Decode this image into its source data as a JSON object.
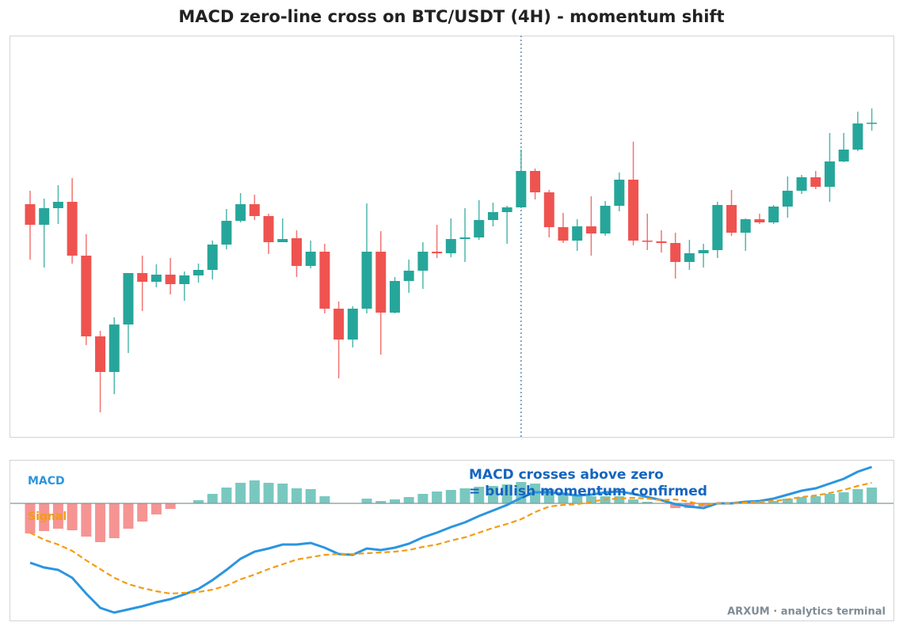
{
  "chart_data": [
    {
      "type": "candlestick",
      "title": "MACD zero-line cross on BTC/USDT (4H) - momentum shift",
      "up_color": "#26a69a",
      "down_color": "#ef5350",
      "ylim": [
        8,
        515
      ],
      "marker_index": 35,
      "open": [
        302,
        276,
        297,
        305,
        237,
        135,
        90,
        150,
        215,
        204,
        213,
        201,
        212,
        219,
        251,
        281,
        302,
        287,
        254,
        259,
        224,
        242,
        170,
        131,
        170,
        242,
        165,
        205,
        218,
        242,
        240,
        258,
        260,
        282,
        292,
        298,
        344,
        317,
        273,
        256,
        274,
        265,
        300,
        333,
        256,
        255,
        253,
        229,
        240,
        244,
        301,
        266,
        283,
        279,
        299,
        319,
        336,
        324,
        356,
        371,
        404
      ],
      "high": [
        319,
        309,
        326,
        335,
        264,
        142,
        159,
        215,
        237,
        226,
        234,
        217,
        227,
        256,
        296,
        316,
        314,
        290,
        284,
        269,
        256,
        252,
        179,
        173,
        303,
        268,
        210,
        232,
        254,
        276,
        284,
        297,
        307,
        304,
        300,
        371,
        347,
        320,
        291,
        283,
        312,
        306,
        342,
        381,
        290,
        269,
        266,
        257,
        252,
        305,
        320,
        284,
        290,
        301,
        337,
        339,
        344,
        392,
        392,
        419,
        423
      ],
      "low": [
        232,
        222,
        277,
        227,
        124,
        39,
        62,
        114,
        167,
        197,
        188,
        180,
        203,
        207,
        245,
        279,
        282,
        239,
        254,
        210,
        221,
        164,
        82,
        121,
        164,
        112,
        164,
        190,
        195,
        234,
        235,
        229,
        257,
        274,
        252,
        297,
        308,
        260,
        253,
        243,
        237,
        262,
        293,
        250,
        244,
        241,
        208,
        219,
        222,
        234,
        262,
        243,
        277,
        277,
        285,
        315,
        321,
        305,
        355,
        369,
        395
      ],
      "close": [
        276,
        297,
        305,
        237,
        135,
        90,
        150,
        215,
        204,
        213,
        201,
        212,
        219,
        251,
        281,
        302,
        287,
        254,
        258,
        224,
        242,
        170,
        131,
        170,
        242,
        165,
        205,
        218,
        242,
        240,
        258,
        260,
        282,
        292,
        298,
        344,
        317,
        273,
        256,
        274,
        265,
        300,
        333,
        256,
        255,
        253,
        229,
        240,
        244,
        301,
        266,
        283,
        279,
        299,
        319,
        336,
        324,
        356,
        371,
        404,
        405
      ]
    },
    {
      "type": "macd",
      "ylim": [
        -14.8,
        5.5
      ],
      "annotation": [
        "MACD crosses above zero",
        "= bullish momentum confirmed"
      ],
      "annotation_index": 35,
      "footer": "ARXUM · analytics terminal",
      "series": [
        {
          "kind": "histogram",
          "color": "#26a69a",
          "negative_color": "#ef5350",
          "values": [
            -3.8,
            -3.5,
            -3.2,
            -3.4,
            -4.2,
            -4.9,
            -4.4,
            -3.2,
            -2.3,
            -1.4,
            -0.7,
            0,
            0.4,
            1.2,
            2.0,
            2.6,
            2.9,
            2.6,
            2.5,
            1.9,
            1.8,
            0.9,
            0,
            0,
            0.6,
            0.3,
            0.5,
            0.8,
            1.2,
            1.5,
            1.7,
            1.9,
            2.1,
            2.2,
            2.4,
            2.7,
            2.5,
            1.8,
            1.4,
            1.1,
            0.9,
            0.9,
            0.9,
            0.5,
            0.2,
            0,
            -0.6,
            -0.6,
            -0.4,
            0,
            0,
            0.1,
            0.1,
            0.3,
            0.6,
            0.8,
            0.9,
            1.2,
            1.4,
            1.8,
            2.0
          ]
        },
        {
          "kind": "line",
          "name": "MACD",
          "color": "#2b95e0",
          "values": [
            -7.5,
            -8.1,
            -8.4,
            -9.4,
            -11.4,
            -13.2,
            -13.8,
            -13.4,
            -13.0,
            -12.5,
            -12.1,
            -11.5,
            -10.8,
            -9.7,
            -8.4,
            -7.0,
            -6.1,
            -5.7,
            -5.2,
            -5.2,
            -5.0,
            -5.6,
            -6.4,
            -6.5,
            -5.7,
            -5.9,
            -5.6,
            -5.1,
            -4.3,
            -3.7,
            -3.0,
            -2.4,
            -1.6,
            -0.9,
            -0.2,
            0.7,
            1.4,
            1.4,
            1.2,
            1.0,
            1.1,
            1.4,
            1.5,
            1.2,
            0.8,
            0.4,
            -0.1,
            -0.4,
            -0.6,
            0.0,
            0.0,
            0.2,
            0.3,
            0.6,
            1.1,
            1.6,
            1.9,
            2.5,
            3.1,
            4.0,
            4.6
          ]
        },
        {
          "kind": "line",
          "name": "Signal",
          "color": "#f39c12",
          "dashed": true,
          "values": [
            -3.7,
            -4.6,
            -5.2,
            -6.0,
            -7.2,
            -8.3,
            -9.4,
            -10.2,
            -10.7,
            -11.1,
            -11.4,
            -11.3,
            -11.2,
            -10.9,
            -10.4,
            -9.6,
            -9.0,
            -8.3,
            -7.7,
            -7.1,
            -6.8,
            -6.5,
            -6.4,
            -6.4,
            -6.3,
            -6.2,
            -6.1,
            -5.9,
            -5.5,
            -5.2,
            -4.7,
            -4.3,
            -3.7,
            -3.1,
            -2.6,
            -2.0,
            -1.1,
            -0.4,
            -0.2,
            -0.1,
            0.2,
            0.5,
            0.6,
            0.7,
            0.6,
            0.4,
            0.5,
            0.2,
            -0.2,
            0.0,
            0.0,
            0.1,
            0.2,
            0.3,
            0.5,
            0.8,
            1.0,
            1.3,
            1.7,
            2.2,
            2.6
          ]
        }
      ]
    }
  ]
}
